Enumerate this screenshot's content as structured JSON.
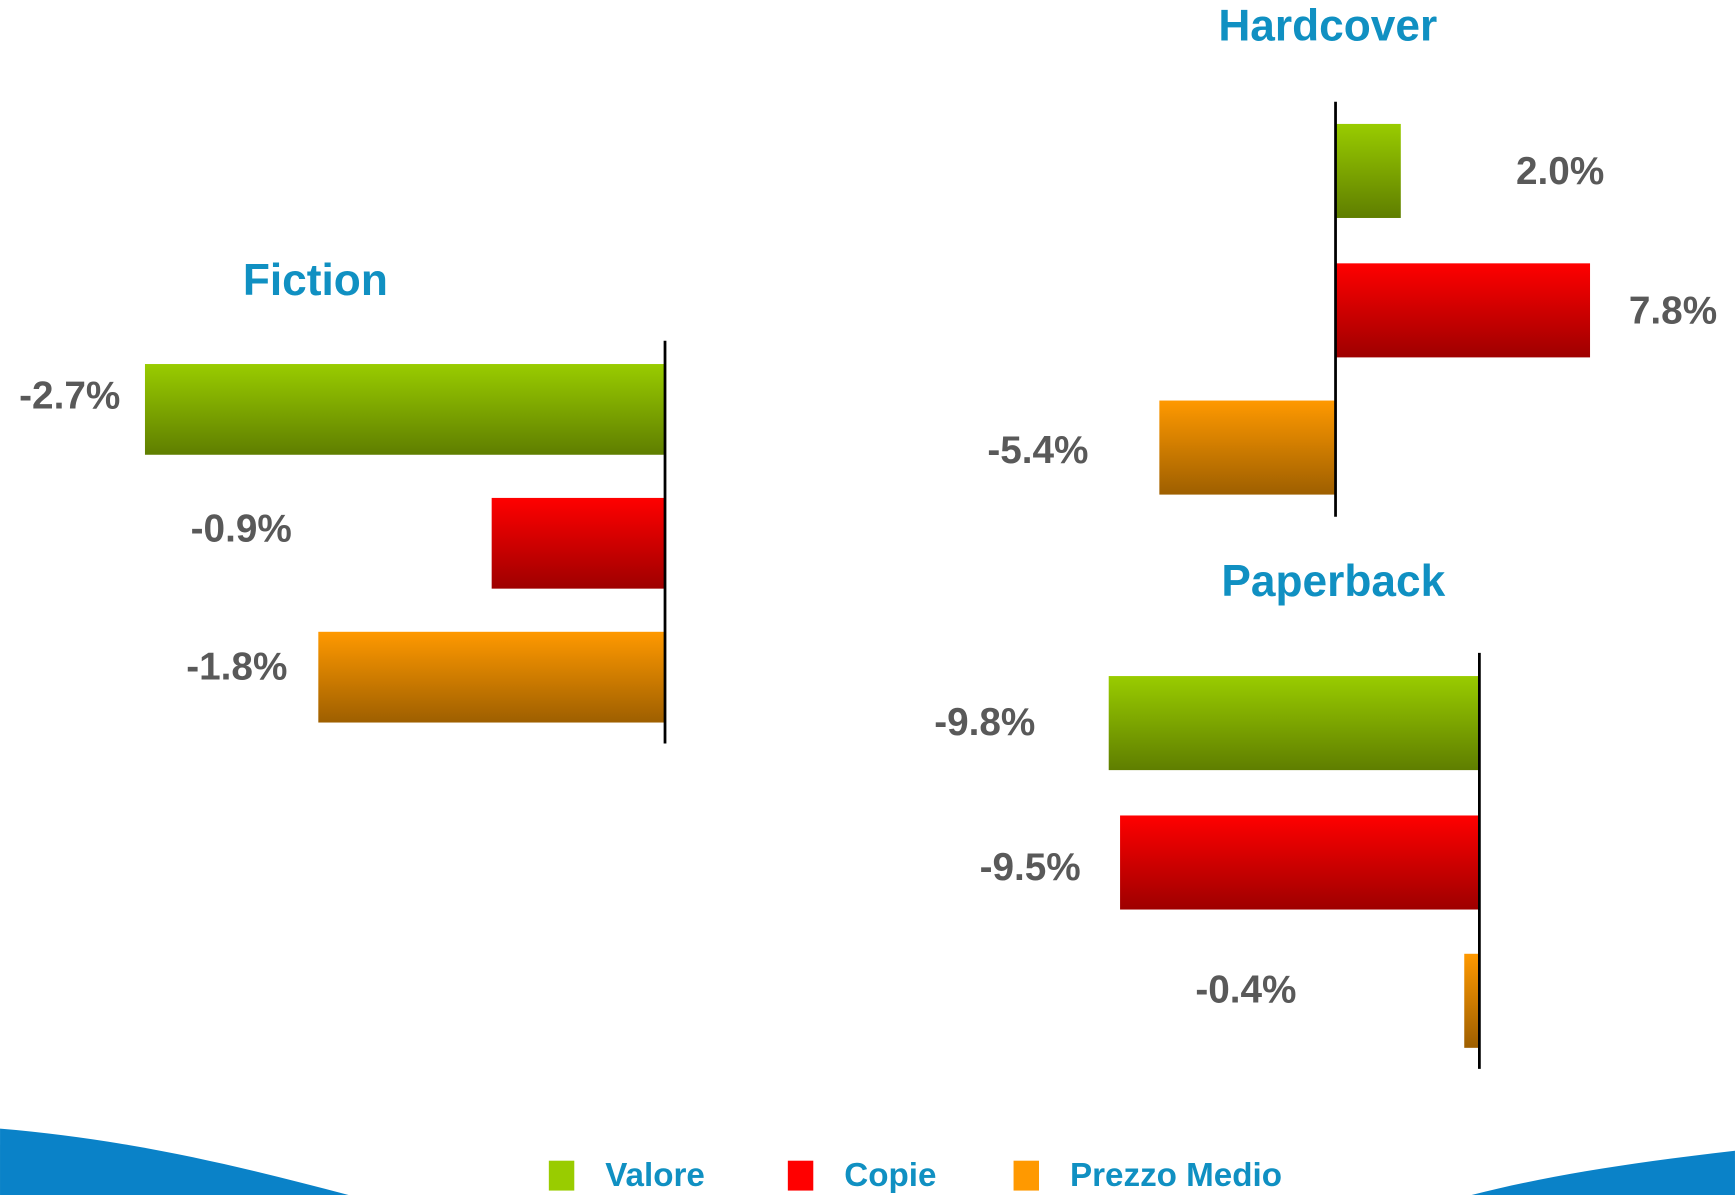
{
  "chart_data": [
    {
      "type": "bar",
      "title": "Fiction",
      "values": [
        -2.7,
        -0.9,
        -1.8
      ],
      "value_labels": [
        "-2.7%",
        "-0.9%",
        "-1.8%"
      ]
    },
    {
      "type": "bar",
      "title": "Hardcover",
      "values": [
        2.0,
        7.8,
        -5.4
      ],
      "value_labels": [
        "2.0%",
        "7.8%",
        "-5.4%"
      ]
    },
    {
      "type": "bar",
      "title": "Paperback",
      "values": [
        -9.8,
        -9.5,
        -0.4
      ],
      "value_labels": [
        "-9.8%",
        "-9.5%",
        "-0.4%"
      ]
    }
  ],
  "legend": {
    "items": [
      {
        "name": "Valore",
        "color": "#99cc00"
      },
      {
        "name": "Copie",
        "color": "#ff0000"
      },
      {
        "name": "Prezzo Medio",
        "color": "#ff9900"
      }
    ]
  }
}
